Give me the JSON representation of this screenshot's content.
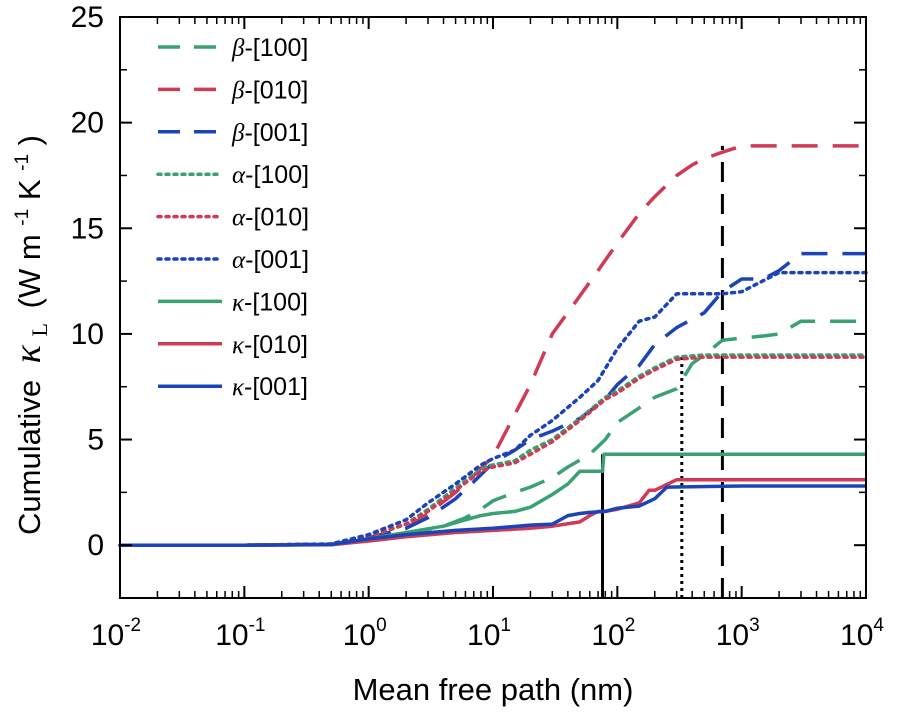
{
  "chart_data": {
    "type": "line",
    "xscale": "log",
    "xlim": [
      0.01,
      10000
    ],
    "ylim": [
      -2.5,
      25
    ],
    "x_ticks": [
      {
        "base": "10",
        "exp": "-2"
      },
      {
        "base": "10",
        "exp": "-1"
      },
      {
        "base": "10",
        "exp": "0"
      },
      {
        "base": "10",
        "exp": "1"
      },
      {
        "base": "10",
        "exp": "2"
      },
      {
        "base": "10",
        "exp": "3"
      },
      {
        "base": "10",
        "exp": "4"
      }
    ],
    "x_tick_values": [
      0.01,
      0.1,
      1,
      10,
      100,
      1000,
      10000
    ],
    "y_ticks": [
      "0",
      "5",
      "10",
      "15",
      "20",
      "25"
    ],
    "y_tick_values": [
      0,
      5,
      10,
      15,
      20,
      25
    ],
    "xlabel": "Mean free path (nm)",
    "ylabel": {
      "prefix": "Cumulative",
      "symbol": "κ",
      "subscript": "L",
      "unit_open": "(W m",
      "exp1": "-1",
      "unit_mid": "K",
      "exp2": "-1",
      "unit_close": ")"
    },
    "legend_position": "top-left",
    "grid": false,
    "series": [
      {
        "name": "β-[100]",
        "greek": "β",
        "dir": "-[100]",
        "color": "#3aa272",
        "style": "dashed",
        "x": [
          0.01,
          0.1,
          0.5,
          1,
          2,
          4,
          6,
          8,
          10,
          15,
          20,
          30,
          40,
          60,
          80,
          100,
          150,
          200,
          300,
          400,
          500,
          700,
          1000,
          1500,
          2000,
          3000,
          5000,
          10000
        ],
        "y": [
          0,
          0,
          0.03,
          0.25,
          0.55,
          0.9,
          1.3,
          1.7,
          2.1,
          2.5,
          2.75,
          3.2,
          3.7,
          4.3,
          5.0,
          5.8,
          6.5,
          7.0,
          7.4,
          8.6,
          9.0,
          9.7,
          9.8,
          9.9,
          10.0,
          10.6,
          10.6,
          10.6
        ]
      },
      {
        "name": "β-[010]",
        "greek": "β",
        "dir": "-[010]",
        "color": "#cf3a55",
        "style": "dashed",
        "x": [
          0.01,
          0.1,
          0.5,
          1,
          2,
          3,
          5,
          7,
          10,
          15,
          20,
          30,
          50,
          70,
          100,
          150,
          200,
          300,
          400,
          500,
          700,
          1000,
          2000,
          5000,
          10000
        ],
        "y": [
          0,
          0,
          0.04,
          0.3,
          0.8,
          1.5,
          2.5,
          3.3,
          4.2,
          6.2,
          7.6,
          10.0,
          11.8,
          13.0,
          14.3,
          15.7,
          16.5,
          17.5,
          18.0,
          18.3,
          18.6,
          18.9,
          18.9,
          18.9,
          18.9
        ]
      },
      {
        "name": "β-[001]",
        "greek": "β",
        "dir": "-[001]",
        "color": "#1b44b8",
        "style": "dashed",
        "x": [
          0.01,
          0.1,
          0.5,
          1,
          2,
          3,
          5,
          7,
          10,
          15,
          20,
          30,
          50,
          80,
          100,
          150,
          200,
          300,
          500,
          700,
          1000,
          1500,
          2000,
          3000,
          5000,
          10000
        ],
        "y": [
          0,
          0,
          0.04,
          0.35,
          0.8,
          1.3,
          2.2,
          3.0,
          3.9,
          4.5,
          5.0,
          5.4,
          6.0,
          6.9,
          7.6,
          8.5,
          9.5,
          10.3,
          11.0,
          12.0,
          12.6,
          12.6,
          13.0,
          13.8,
          13.8,
          13.8
        ]
      },
      {
        "name": "α-[100]",
        "greek": "α",
        "dir": "-[100]",
        "color": "#3aa272",
        "style": "dotted",
        "x": [
          0.01,
          0.1,
          0.5,
          1,
          2,
          3,
          5,
          8,
          10,
          15,
          20,
          30,
          50,
          80,
          100,
          150,
          200,
          300,
          500,
          1000,
          10000
        ],
        "y": [
          0,
          0,
          0.05,
          0.4,
          1.0,
          1.7,
          2.7,
          3.6,
          3.8,
          4.0,
          4.5,
          5.0,
          6.0,
          7.0,
          7.3,
          8.0,
          8.4,
          8.9,
          9.0,
          9.0,
          9.0
        ]
      },
      {
        "name": "α-[010]",
        "greek": "α",
        "dir": "-[010]",
        "color": "#cf3a55",
        "style": "dotted",
        "x": [
          0.01,
          0.1,
          0.5,
          1,
          2,
          3,
          5,
          8,
          10,
          15,
          20,
          30,
          50,
          80,
          100,
          150,
          200,
          300,
          500,
          1000,
          10000
        ],
        "y": [
          0,
          0,
          0.05,
          0.4,
          1.0,
          1.6,
          2.6,
          3.5,
          3.7,
          3.9,
          4.3,
          4.9,
          5.9,
          6.9,
          7.2,
          7.9,
          8.3,
          8.8,
          8.9,
          8.9,
          8.9
        ]
      },
      {
        "name": "α-[001]",
        "greek": "α",
        "dir": "-[001]",
        "color": "#1b44b8",
        "style": "dotted",
        "x": [
          0.01,
          0.1,
          0.5,
          1,
          2,
          3,
          5,
          8,
          10,
          15,
          20,
          30,
          50,
          70,
          100,
          150,
          200,
          300,
          500,
          700,
          1000,
          2000,
          10000
        ],
        "y": [
          0,
          0,
          0.06,
          0.5,
          1.2,
          2.0,
          2.9,
          3.8,
          4.1,
          4.5,
          5.2,
          5.9,
          7.0,
          7.8,
          9.3,
          10.6,
          10.8,
          11.9,
          11.9,
          11.9,
          12.0,
          12.9,
          12.9
        ]
      },
      {
        "name": "κ-[100]",
        "greek": "κ",
        "dir": "-[100]",
        "color": "#3aa272",
        "style": "solid",
        "x": [
          0.01,
          0.1,
          0.5,
          1,
          2,
          4,
          6,
          8,
          10,
          15,
          20,
          30,
          40,
          50,
          60,
          70,
          76,
          78,
          100,
          200,
          1000,
          10000
        ],
        "y": [
          0,
          0,
          0.03,
          0.3,
          0.6,
          0.9,
          1.2,
          1.4,
          1.5,
          1.6,
          1.8,
          2.4,
          2.9,
          3.5,
          3.5,
          3.5,
          3.5,
          4.3,
          4.3,
          4.3,
          4.3,
          4.3
        ]
      },
      {
        "name": "κ-[010]",
        "greek": "κ",
        "dir": "-[010]",
        "color": "#cf3a55",
        "style": "solid",
        "x": [
          0.01,
          0.1,
          0.5,
          1,
          2,
          5,
          10,
          20,
          30,
          50,
          60,
          70,
          80,
          100,
          150,
          180,
          200,
          300,
          1000,
          10000
        ],
        "y": [
          0,
          0,
          0.02,
          0.2,
          0.4,
          0.6,
          0.7,
          0.8,
          0.9,
          1.1,
          1.4,
          1.6,
          1.6,
          1.7,
          2.0,
          2.6,
          2.6,
          3.1,
          3.1,
          3.1
        ]
      },
      {
        "name": "κ-[001]",
        "greek": "κ",
        "dir": "-[001]",
        "color": "#1b44b8",
        "style": "solid",
        "x": [
          0.01,
          0.1,
          0.5,
          1,
          2,
          5,
          10,
          20,
          30,
          40,
          50,
          60,
          80,
          100,
          150,
          200,
          250,
          1000,
          10000
        ],
        "y": [
          0,
          0,
          0.03,
          0.3,
          0.5,
          0.7,
          0.8,
          0.95,
          1.0,
          1.4,
          1.5,
          1.55,
          1.6,
          1.75,
          1.85,
          2.2,
          2.75,
          2.8,
          2.8
        ]
      }
    ],
    "reference_lines": [
      {
        "x": 76,
        "y_top": 4.3,
        "style": "solid"
      },
      {
        "x": 330,
        "y_top": 9.0,
        "style": "dotted"
      },
      {
        "x": 700,
        "y_top": 18.9,
        "style": "dashed"
      }
    ]
  }
}
